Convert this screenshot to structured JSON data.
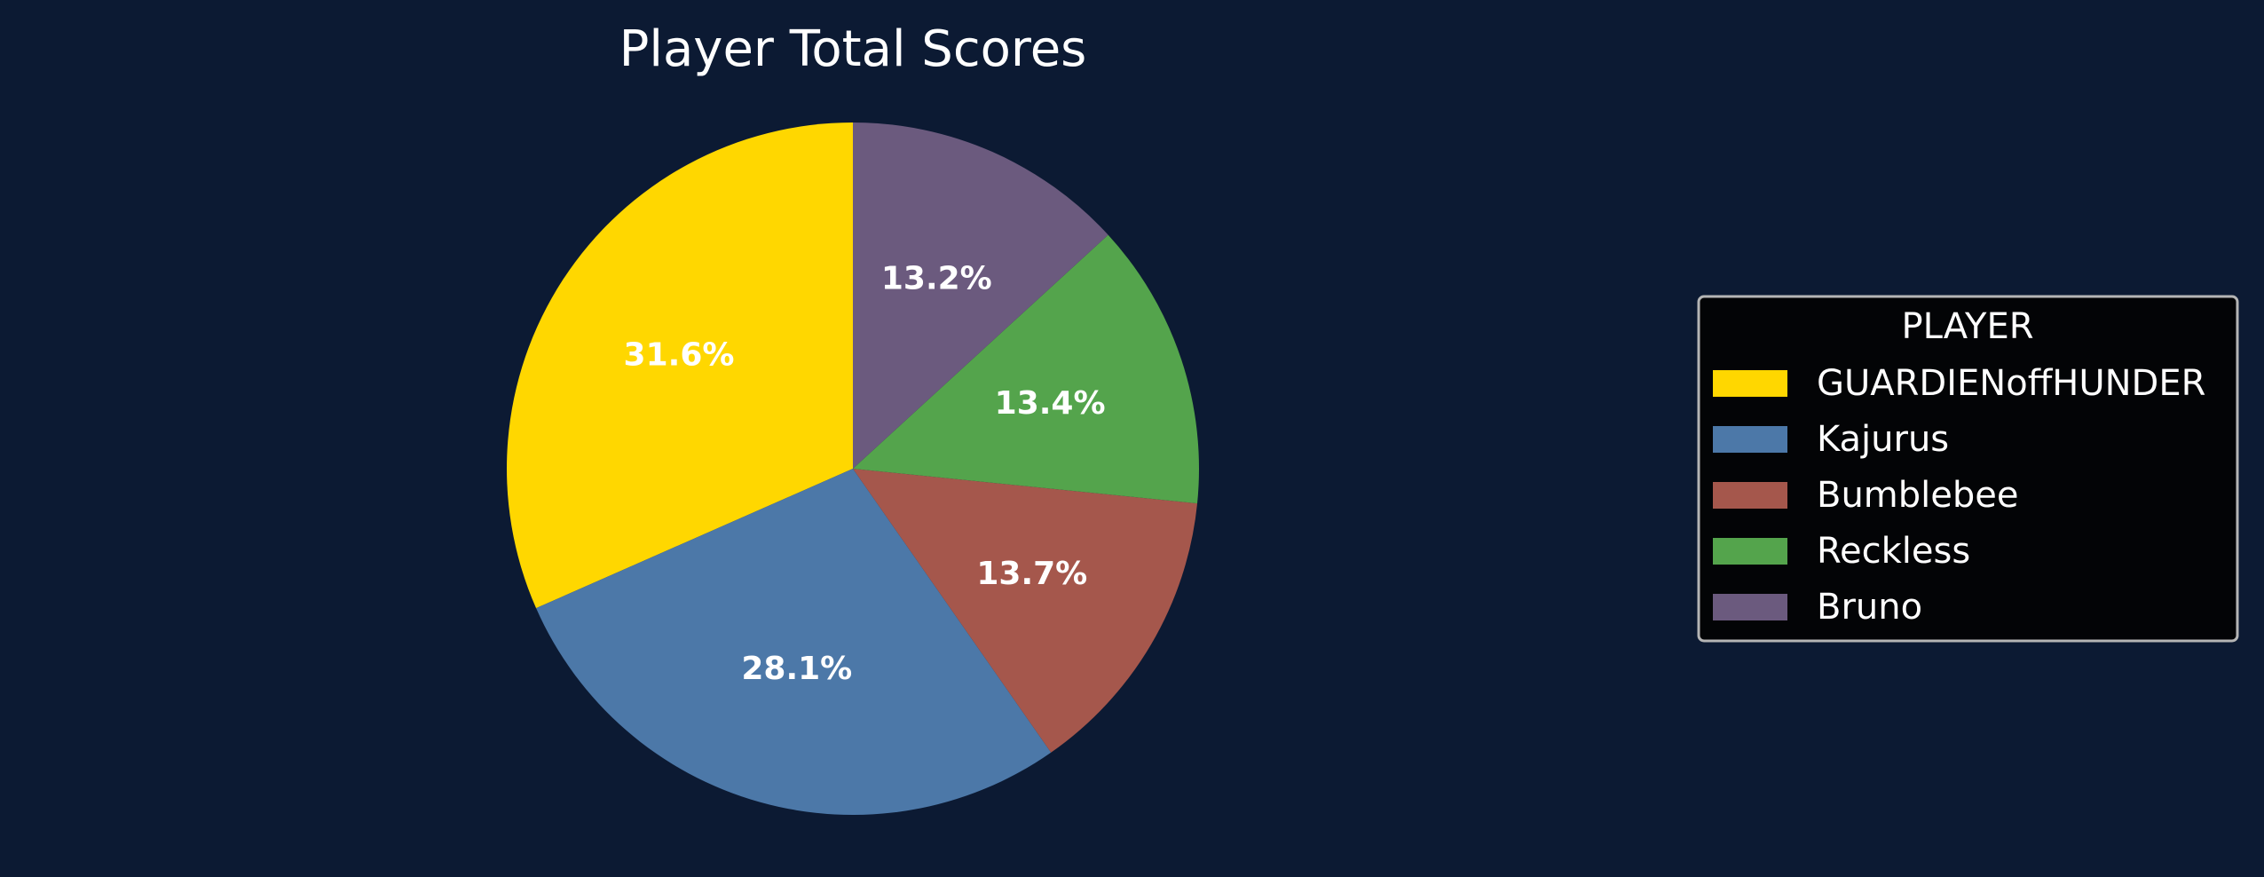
{
  "chart_data": {
    "type": "pie",
    "title": "Player Total Scores",
    "categories": [
      "GUARDIENoffHUNDER",
      "Kajurus",
      "Bumblebee",
      "Reckless",
      "Bruno"
    ],
    "values": [
      31.6,
      28.1,
      13.7,
      13.4,
      13.2
    ],
    "labels": [
      "31.6%",
      "28.1%",
      "13.7%",
      "13.4%",
      "13.2%"
    ],
    "colors": [
      "#ffd700",
      "#4c78a8",
      "#a5574c",
      "#54a44c",
      "#6b5a7e"
    ],
    "start_angle": "90deg (12 o'clock)",
    "direction": "counter-clockwise",
    "legend": {
      "title": "PLAYER",
      "placement": "center-right"
    }
  },
  "theme": {
    "background": "#0c1a33",
    "legend_background": "#030406",
    "legend_border": "#b5b5b5",
    "text_color": "#ffffff"
  }
}
